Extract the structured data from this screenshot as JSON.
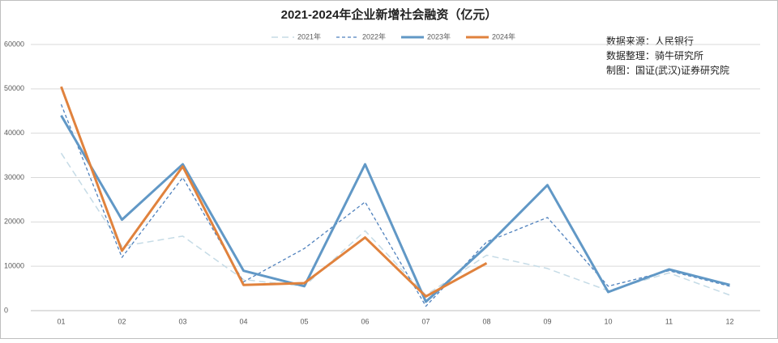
{
  "chart_data": {
    "type": "line",
    "title": "2021-2024年企业新增社会融资（亿元）",
    "annotations": [
      "数据来源：人民银行",
      "数据整理：骑牛研究所",
      "制图：国证(武汉)证券研究院"
    ],
    "categories": [
      "01",
      "02",
      "03",
      "04",
      "05",
      "06",
      "07",
      "08",
      "09",
      "10",
      "11",
      "12"
    ],
    "series": [
      {
        "name": "2021年",
        "color": "#c5dbe6",
        "style": "dashed",
        "values": [
          35500,
          14500,
          16800,
          7000,
          5500,
          18000,
          3500,
          12500,
          9500,
          4500,
          8500,
          3500
        ]
      },
      {
        "name": "2022年",
        "color": "#4f81bd",
        "style": "dashed",
        "values": [
          46500,
          12000,
          30000,
          6500,
          14000,
          24500,
          1000,
          15500,
          21000,
          5500,
          9000,
          5500
        ]
      },
      {
        "name": "2023年",
        "color": "#6198c6",
        "style": "solid",
        "values": [
          44000,
          20500,
          33000,
          9000,
          5500,
          33000,
          2000,
          14500,
          28300,
          4200,
          9300,
          5800
        ]
      },
      {
        "name": "2024年",
        "color": "#e0823d",
        "style": "solid",
        "values": [
          50500,
          13500,
          32500,
          5800,
          6200,
          16500,
          3200,
          10700,
          null,
          null,
          null,
          null
        ]
      }
    ],
    "ylim": [
      0,
      60000
    ],
    "yticks": [
      0,
      10000,
      20000,
      30000,
      40000,
      50000,
      60000
    ],
    "grid": true
  }
}
